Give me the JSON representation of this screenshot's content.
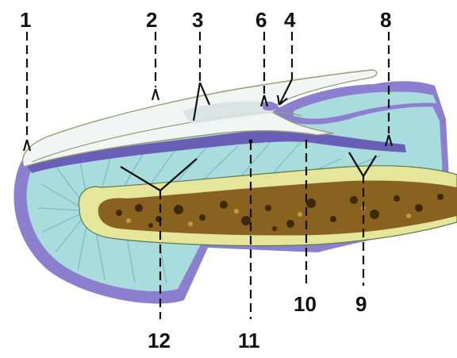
{
  "labels": {
    "l1": "1",
    "l2": "2",
    "l3": "3",
    "l4": "4",
    "l6": "6",
    "l8": "8",
    "l9": "9",
    "l10": "10",
    "l11": "11",
    "l12": "12"
  },
  "colors": {
    "dermis": "#a9dcdc",
    "fiber": "#6fb5c8",
    "epidermis": "#8d7fcf",
    "epidermis_dark": "#6a5fb6",
    "nail_plate": "#f1f6f4",
    "bone_cortex": "#e6e69a",
    "marrow": "#8a6220",
    "leader": "#111111"
  }
}
